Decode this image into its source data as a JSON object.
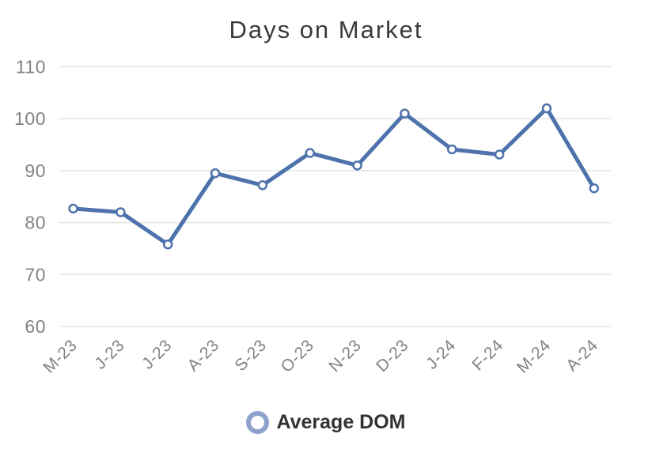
{
  "chart_data": {
    "type": "line",
    "title": "Days on Market",
    "categories": [
      "M-23",
      "J-23",
      "J-23",
      "A-23",
      "S-23",
      "O-23",
      "N-23",
      "D-23",
      "J-24",
      "F-24",
      "M-24",
      "A-24"
    ],
    "series": [
      {
        "name": "Average DOM",
        "values": [
          82.7,
          82,
          75.8,
          89.5,
          87.2,
          93.4,
          91,
          101,
          94.1,
          93.1,
          102,
          86.6
        ]
      }
    ],
    "xlabel": "",
    "ylabel": "",
    "ylim": [
      60,
      110
    ],
    "yticks": [
      60,
      70,
      80,
      90,
      100,
      110
    ],
    "x_tick_rotation": -45,
    "grid": "horizontal",
    "legend_position": "bottom",
    "marker": "open-circle",
    "colors": {
      "line": "#4e72ac",
      "marker_fill": "#ffffff",
      "legend_ring": "#8fa2cd",
      "grid": "#e5e5e5",
      "tick_label": "#828282",
      "title": "#3b3b3b",
      "legend_text": "#323232"
    }
  }
}
